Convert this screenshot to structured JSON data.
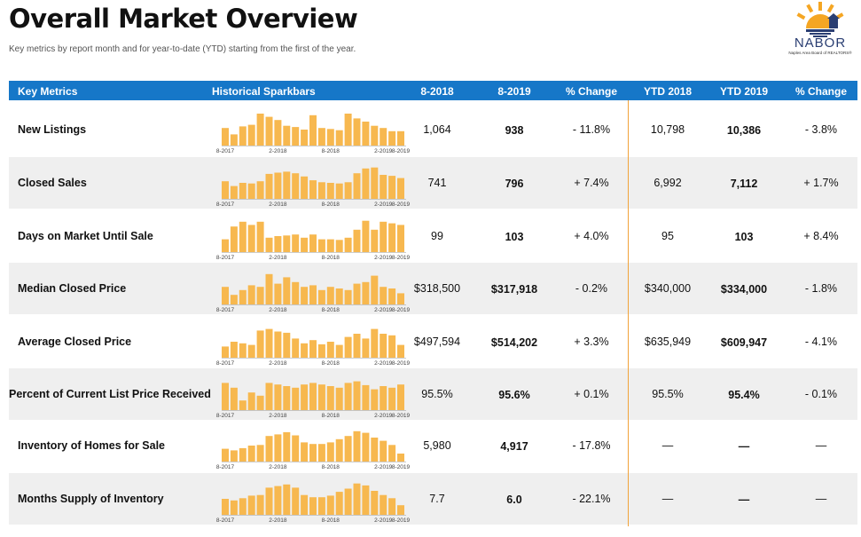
{
  "title": "Overall Market Overview",
  "subtitle": "Key metrics by report month and for year-to-date (YTD) starting from the first of the year.",
  "logo": {
    "name": "NABOR",
    "tagline": "Naples Area Board of REALTORS®"
  },
  "header": {
    "key_metrics": "Key Metrics",
    "sparkbars": "Historical Sparkbars",
    "m2018": "8-2018",
    "m2019": "8-2019",
    "pct1": "% Change",
    "ytd2018": "YTD 2018",
    "ytd2019": "YTD 2019",
    "pct2": "% Change"
  },
  "spark_axis": [
    "8-2017",
    "2-2018",
    "8-2018",
    "2-2019",
    "8-2019"
  ],
  "colors": {
    "header": "#1677c8",
    "bar": "#f7b84f",
    "divider": "#f2a33a",
    "alt_row": "#efefef"
  },
  "rows": [
    {
      "metric": "New Listings",
      "m2018": "1,064",
      "m2019": "938",
      "pct1": "- 11.8%",
      "ytd2018": "10,798",
      "ytd2019": "10,386",
      "pct2": "- 3.8%",
      "spark": [
        0.55,
        0.35,
        0.6,
        0.65,
        1.0,
        0.9,
        0.8,
        0.62,
        0.58,
        0.5,
        0.95,
        0.55,
        0.52,
        0.48,
        1.0,
        0.85,
        0.75,
        0.62,
        0.55,
        0.45,
        0.45
      ]
    },
    {
      "metric": "Closed Sales",
      "m2018": "741",
      "m2019": "796",
      "pct1": "+ 7.4%",
      "ytd2018": "6,992",
      "ytd2019": "7,112",
      "pct2": "+ 1.7%",
      "spark": [
        0.55,
        0.4,
        0.5,
        0.48,
        0.55,
        0.78,
        0.82,
        0.85,
        0.8,
        0.7,
        0.58,
        0.52,
        0.5,
        0.48,
        0.52,
        0.8,
        0.95,
        0.98,
        0.75,
        0.72,
        0.65
      ]
    },
    {
      "metric": "Days on Market Until Sale",
      "m2018": "99",
      "m2019": "103",
      "pct1": "+ 4.0%",
      "ytd2018": "95",
      "ytd2019": "103",
      "pct2": "+ 8.4%",
      "spark": [
        0.4,
        0.8,
        0.95,
        0.85,
        0.95,
        0.45,
        0.5,
        0.52,
        0.55,
        0.45,
        0.55,
        0.4,
        0.4,
        0.38,
        0.45,
        0.7,
        0.98,
        0.7,
        0.95,
        0.9,
        0.85
      ]
    },
    {
      "metric": "Median Closed Price",
      "m2018": "$318,500",
      "m2019": "$317,918",
      "pct1": "- 0.2%",
      "ytd2018": "$340,000",
      "ytd2019": "$334,000",
      "pct2": "- 1.8%",
      "spark": [
        0.55,
        0.3,
        0.45,
        0.6,
        0.55,
        0.95,
        0.65,
        0.85,
        0.7,
        0.55,
        0.6,
        0.45,
        0.55,
        0.5,
        0.45,
        0.65,
        0.7,
        0.9,
        0.55,
        0.5,
        0.35
      ]
    },
    {
      "metric": "Average Closed Price",
      "m2018": "$497,594",
      "m2019": "$514,202",
      "pct1": "+ 3.3%",
      "ytd2018": "$635,949",
      "ytd2019": "$609,947",
      "pct2": "- 4.1%",
      "spark": [
        0.35,
        0.5,
        0.45,
        0.4,
        0.85,
        0.9,
        0.82,
        0.78,
        0.6,
        0.45,
        0.55,
        0.42,
        0.5,
        0.4,
        0.65,
        0.75,
        0.6,
        0.9,
        0.75,
        0.7,
        0.4
      ]
    },
    {
      "metric": "Percent of Current List Price Received",
      "m2018": "95.5%",
      "m2019": "95.6%",
      "pct1": "+ 0.1%",
      "ytd2018": "95.5%",
      "ytd2019": "95.4%",
      "pct2": "- 0.1%",
      "spark": [
        0.85,
        0.7,
        0.3,
        0.55,
        0.45,
        0.85,
        0.8,
        0.75,
        0.7,
        0.8,
        0.85,
        0.8,
        0.75,
        0.7,
        0.85,
        0.9,
        0.78,
        0.65,
        0.75,
        0.7,
        0.8
      ]
    },
    {
      "metric": "Inventory of Homes for Sale",
      "m2018": "5,980",
      "m2019": "4,917",
      "pct1": "- 17.8%",
      "ytd2018": "—",
      "ytd2019": "—",
      "pct2": "—",
      "spark": [
        0.4,
        0.35,
        0.42,
        0.5,
        0.52,
        0.8,
        0.85,
        0.92,
        0.82,
        0.6,
        0.55,
        0.55,
        0.6,
        0.7,
        0.8,
        0.95,
        0.9,
        0.75,
        0.65,
        0.52,
        0.25
      ]
    },
    {
      "metric": "Months Supply of Inventory",
      "m2018": "7.7",
      "m2019": "6.0",
      "pct1": "- 22.1%",
      "ytd2018": "—",
      "ytd2019": "—",
      "pct2": "—",
      "spark": [
        0.5,
        0.45,
        0.52,
        0.6,
        0.62,
        0.85,
        0.9,
        0.95,
        0.85,
        0.62,
        0.55,
        0.55,
        0.6,
        0.72,
        0.82,
        0.98,
        0.92,
        0.75,
        0.62,
        0.52,
        0.3
      ]
    }
  ]
}
